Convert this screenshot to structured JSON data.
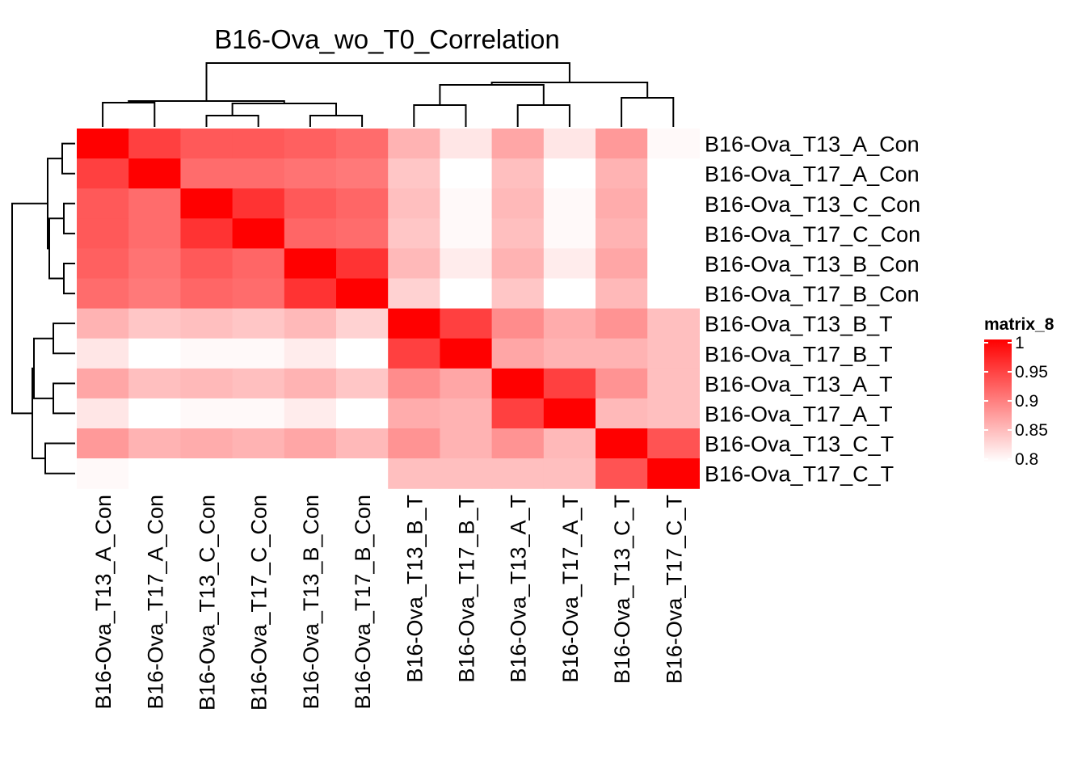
{
  "chart_data": {
    "type": "heatmap",
    "title": "B16-Ova_wo_T0_Correlation",
    "row_labels": [
      "B16-Ova_T13_A_Con",
      "B16-Ova_T17_A_Con",
      "B16-Ova_T13_C_Con",
      "B16-Ova_T17_C_Con",
      "B16-Ova_T13_B_Con",
      "B16-Ova_T17_B_Con",
      "B16-Ova_T13_B_T",
      "B16-Ova_T17_B_T",
      "B16-Ova_T13_A_T",
      "B16-Ova_T17_A_T",
      "B16-Ova_T13_C_T",
      "B16-Ova_T17_C_T"
    ],
    "col_labels": [
      "B16-Ova_T13_A_Con",
      "B16-Ova_T17_A_Con",
      "B16-Ova_T13_C_Con",
      "B16-Ova_T17_C_Con",
      "B16-Ova_T13_B_Con",
      "B16-Ova_T17_B_Con",
      "B16-Ova_T13_B_T",
      "B16-Ova_T17_B_T",
      "B16-Ova_T13_A_T",
      "B16-Ova_T17_A_T",
      "B16-Ova_T13_C_T",
      "B16-Ova_T17_C_T"
    ],
    "values": [
      [
        1.0,
        0.95,
        0.93,
        0.93,
        0.925,
        0.915,
        0.86,
        0.82,
        0.87,
        0.82,
        0.88,
        0.805
      ],
      [
        0.95,
        1.0,
        0.915,
        0.915,
        0.91,
        0.905,
        0.845,
        0.8,
        0.85,
        0.8,
        0.86,
        0.79
      ],
      [
        0.93,
        0.915,
        1.0,
        0.96,
        0.93,
        0.92,
        0.85,
        0.805,
        0.855,
        0.805,
        0.865,
        0.795
      ],
      [
        0.93,
        0.915,
        0.96,
        1.0,
        0.92,
        0.915,
        0.845,
        0.805,
        0.85,
        0.805,
        0.86,
        0.792
      ],
      [
        0.925,
        0.91,
        0.93,
        0.92,
        1.0,
        0.96,
        0.855,
        0.815,
        0.86,
        0.815,
        0.87,
        0.8
      ],
      [
        0.915,
        0.905,
        0.92,
        0.915,
        0.96,
        1.0,
        0.835,
        0.795,
        0.845,
        0.795,
        0.855,
        0.78
      ],
      [
        0.86,
        0.845,
        0.85,
        0.845,
        0.855,
        0.835,
        1.0,
        0.95,
        0.89,
        0.865,
        0.885,
        0.85
      ],
      [
        0.82,
        0.8,
        0.805,
        0.805,
        0.815,
        0.795,
        0.95,
        1.0,
        0.87,
        0.86,
        0.86,
        0.85
      ],
      [
        0.87,
        0.85,
        0.855,
        0.85,
        0.86,
        0.845,
        0.89,
        0.87,
        1.0,
        0.95,
        0.885,
        0.85
      ],
      [
        0.82,
        0.8,
        0.805,
        0.805,
        0.815,
        0.795,
        0.865,
        0.86,
        0.95,
        1.0,
        0.855,
        0.85
      ],
      [
        0.88,
        0.86,
        0.865,
        0.86,
        0.87,
        0.855,
        0.885,
        0.86,
        0.885,
        0.855,
        1.0,
        0.935
      ],
      [
        0.805,
        0.79,
        0.795,
        0.792,
        0.8,
        0.78,
        0.85,
        0.85,
        0.85,
        0.85,
        0.935,
        1.0
      ]
    ],
    "color_scale": {
      "min": 0.8,
      "max": 1.0,
      "low_color": "#ffffff",
      "high_color": "#ff0000"
    },
    "legend": {
      "title": "matrix_8",
      "ticks": [
        1,
        0.95,
        0.9,
        0.85,
        0.8
      ],
      "tick_labels": [
        "1",
        "0.95",
        "0.9",
        "0.85",
        "0.8"
      ],
      "position": "right"
    },
    "row_dendrogram_position": "left",
    "col_dendrogram_position": "top"
  }
}
